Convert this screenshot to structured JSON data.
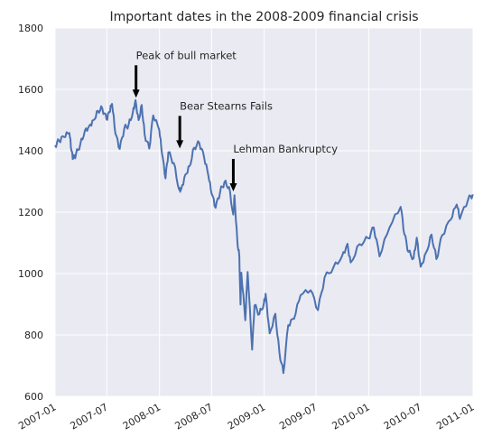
{
  "chart_data": {
    "type": "line",
    "title": "Important dates in the 2008-2009 financial crisis",
    "xlabel": "",
    "ylabel": "",
    "ylim": [
      600,
      1800
    ],
    "xlim": [
      "2007-01-01",
      "2011-01-01"
    ],
    "grid": true,
    "line_color": "#4c72b0",
    "background": "#eaeaf2",
    "y_ticks": [
      "600",
      "800",
      "1000",
      "1200",
      "1400",
      "1600",
      "1800"
    ],
    "x_ticks": [
      {
        "date": "2007-01-01",
        "label": "2007-01"
      },
      {
        "date": "2007-07-01",
        "label": "2007-07"
      },
      {
        "date": "2008-01-01",
        "label": "2008-01"
      },
      {
        "date": "2008-07-01",
        "label": "2008-07"
      },
      {
        "date": "2009-01-01",
        "label": "2009-01"
      },
      {
        "date": "2009-07-01",
        "label": "2009-07"
      },
      {
        "date": "2010-01-01",
        "label": "2010-01"
      },
      {
        "date": "2010-07-01",
        "label": "2010-07"
      },
      {
        "date": "2011-01-01",
        "label": "2011-01"
      }
    ],
    "annotations": [
      {
        "label": "Peak of bull market",
        "date": "2007-10-11",
        "value": 1555
      },
      {
        "label": "Bear Stearns Fails",
        "date": "2008-03-12",
        "value": 1390
      },
      {
        "label": "Lehman Bankruptcy",
        "date": "2008-09-15",
        "value": 1250
      }
    ],
    "series": [
      {
        "points": [
          [
            "2007-01-01",
            1418
          ],
          [
            "2007-01-15",
            1432
          ],
          [
            "2007-02-01",
            1445
          ],
          [
            "2007-02-20",
            1458
          ],
          [
            "2007-02-27",
            1400
          ],
          [
            "2007-03-05",
            1374
          ],
          [
            "2007-03-15",
            1388
          ],
          [
            "2007-03-30",
            1421
          ],
          [
            "2007-04-15",
            1465
          ],
          [
            "2007-05-01",
            1482
          ],
          [
            "2007-05-15",
            1500
          ],
          [
            "2007-05-31",
            1530
          ],
          [
            "2007-06-15",
            1538
          ],
          [
            "2007-06-30",
            1503
          ],
          [
            "2007-07-10",
            1525
          ],
          [
            "2007-07-19",
            1553
          ],
          [
            "2007-07-31",
            1455
          ],
          [
            "2007-08-15",
            1406
          ],
          [
            "2007-08-31",
            1473
          ],
          [
            "2007-09-15",
            1484
          ],
          [
            "2007-09-30",
            1526
          ],
          [
            "2007-10-09",
            1565
          ],
          [
            "2007-10-20",
            1500
          ],
          [
            "2007-10-31",
            1549
          ],
          [
            "2007-11-10",
            1453
          ],
          [
            "2007-11-26",
            1407
          ],
          [
            "2007-12-10",
            1515
          ],
          [
            "2007-12-31",
            1468
          ],
          [
            "2008-01-10",
            1390
          ],
          [
            "2008-01-22",
            1310
          ],
          [
            "2008-02-01",
            1395
          ],
          [
            "2008-02-20",
            1360
          ],
          [
            "2008-03-10",
            1273
          ],
          [
            "2008-03-17",
            1276
          ],
          [
            "2008-03-31",
            1322
          ],
          [
            "2008-04-15",
            1350
          ],
          [
            "2008-05-01",
            1410
          ],
          [
            "2008-05-19",
            1426
          ],
          [
            "2008-06-05",
            1378
          ],
          [
            "2008-06-20",
            1317
          ],
          [
            "2008-07-01",
            1261
          ],
          [
            "2008-07-15",
            1214
          ],
          [
            "2008-07-31",
            1267
          ],
          [
            "2008-08-15",
            1298
          ],
          [
            "2008-08-31",
            1282
          ],
          [
            "2008-09-15",
            1192
          ],
          [
            "2008-09-19",
            1255
          ],
          [
            "2008-09-29",
            1106
          ],
          [
            "2008-10-06",
            1056
          ],
          [
            "2008-10-10",
            899
          ],
          [
            "2008-10-13",
            1003
          ],
          [
            "2008-10-27",
            848
          ],
          [
            "2008-11-04",
            1005
          ],
          [
            "2008-11-20",
            752
          ],
          [
            "2008-11-28",
            896
          ],
          [
            "2008-12-15",
            868
          ],
          [
            "2008-12-31",
            903
          ],
          [
            "2009-01-06",
            934
          ],
          [
            "2009-01-20",
            805
          ],
          [
            "2009-02-09",
            869
          ],
          [
            "2009-02-23",
            743
          ],
          [
            "2009-03-09",
            676
          ],
          [
            "2009-03-26",
            832
          ],
          [
            "2009-04-15",
            852
          ],
          [
            "2009-05-08",
            929
          ],
          [
            "2009-06-12",
            946
          ],
          [
            "2009-07-08",
            881
          ],
          [
            "2009-07-31",
            987
          ],
          [
            "2009-08-31",
            1020
          ],
          [
            "2009-09-30",
            1057
          ],
          [
            "2009-10-19",
            1097
          ],
          [
            "2009-10-30",
            1036
          ],
          [
            "2009-11-30",
            1096
          ],
          [
            "2009-12-31",
            1115
          ],
          [
            "2010-01-19",
            1150
          ],
          [
            "2010-02-08",
            1056
          ],
          [
            "2010-03-15",
            1150
          ],
          [
            "2010-04-23",
            1217
          ],
          [
            "2010-05-06",
            1128
          ],
          [
            "2010-05-20",
            1071
          ],
          [
            "2010-06-07",
            1050
          ],
          [
            "2010-06-18",
            1117
          ],
          [
            "2010-07-02",
            1022
          ],
          [
            "2010-07-21",
            1069
          ],
          [
            "2010-08-09",
            1127
          ],
          [
            "2010-08-26",
            1047
          ],
          [
            "2010-09-15",
            1125
          ],
          [
            "2010-10-15",
            1176
          ],
          [
            "2010-11-05",
            1225
          ],
          [
            "2010-11-16",
            1178
          ],
          [
            "2010-12-15",
            1242
          ],
          [
            "2010-12-31",
            1258
          ]
        ]
      }
    ]
  }
}
